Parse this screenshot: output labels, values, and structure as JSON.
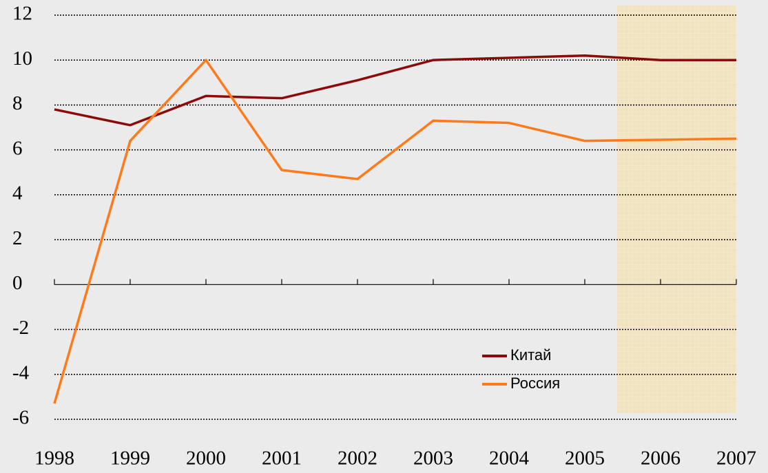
{
  "chart_data": {
    "type": "line",
    "categories": [
      "1998",
      "1999",
      "2000",
      "2001",
      "2002",
      "2003",
      "2004",
      "2005",
      "2006",
      "2007"
    ],
    "series": [
      {
        "name": "Китай",
        "color": "#8b0a0a",
        "values": [
          7.8,
          7.1,
          8.4,
          8.3,
          9.1,
          10.0,
          10.1,
          10.2,
          10.0,
          10.0
        ]
      },
      {
        "name": "Россия",
        "color": "#ff7a1a",
        "values": [
          -5.3,
          6.4,
          10.0,
          5.1,
          4.7,
          7.3,
          7.2,
          6.4,
          6.45,
          6.5
        ]
      }
    ],
    "ylim": [
      -6,
      12
    ],
    "yticks": [
      -6,
      -4,
      -2,
      0,
      2,
      4,
      6,
      8,
      10,
      12
    ],
    "grid": true
  }
}
